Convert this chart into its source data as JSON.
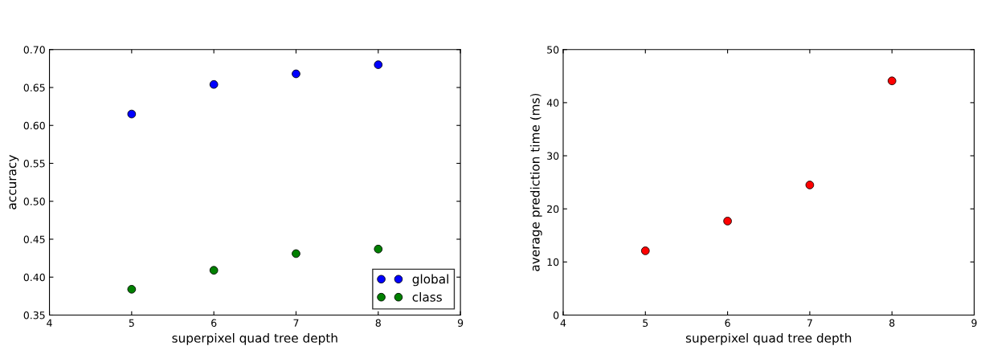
{
  "chart_data": [
    {
      "type": "scatter",
      "xlabel": "superpixel quad tree depth",
      "ylabel": "accuracy",
      "x": [
        5,
        6,
        7,
        8
      ],
      "xlim": [
        4,
        9
      ],
      "xticks": [
        4,
        5,
        6,
        7,
        8,
        9
      ],
      "ylim": [
        0.35,
        0.7
      ],
      "yticks": [
        {
          "value": 0.35,
          "label": "0.35"
        },
        {
          "value": 0.4,
          "label": "0.40"
        },
        {
          "value": 0.45,
          "label": "0.45"
        },
        {
          "value": 0.5,
          "label": "0.50"
        },
        {
          "value": 0.55,
          "label": "0.55"
        },
        {
          "value": 0.6,
          "label": "0.60"
        },
        {
          "value": 0.65,
          "label": "0.65"
        },
        {
          "value": 0.7,
          "label": "0.70"
        }
      ],
      "grid": false,
      "legend": "bottom right",
      "marker": "circle",
      "series": [
        {
          "name": "global",
          "color": "#0000ff",
          "values": [
            0.615,
            0.654,
            0.668,
            0.68
          ]
        },
        {
          "name": "class",
          "color": "#008000",
          "values": [
            0.384,
            0.409,
            0.431,
            0.437
          ]
        }
      ]
    },
    {
      "type": "scatter",
      "xlabel": "superpixel quad tree depth",
      "ylabel": "average prediction time (ms)",
      "x": [
        5,
        6,
        7,
        8
      ],
      "xlim": [
        4,
        9
      ],
      "xticks": [
        4,
        5,
        6,
        7,
        8,
        9
      ],
      "ylim": [
        0,
        50
      ],
      "yticks": [
        0,
        10,
        20,
        30,
        40,
        50
      ],
      "grid": false,
      "marker": "circle",
      "series": [
        {
          "color": "#ff0000",
          "values": [
            12.1,
            17.7,
            24.5,
            44.1
          ]
        }
      ]
    }
  ]
}
